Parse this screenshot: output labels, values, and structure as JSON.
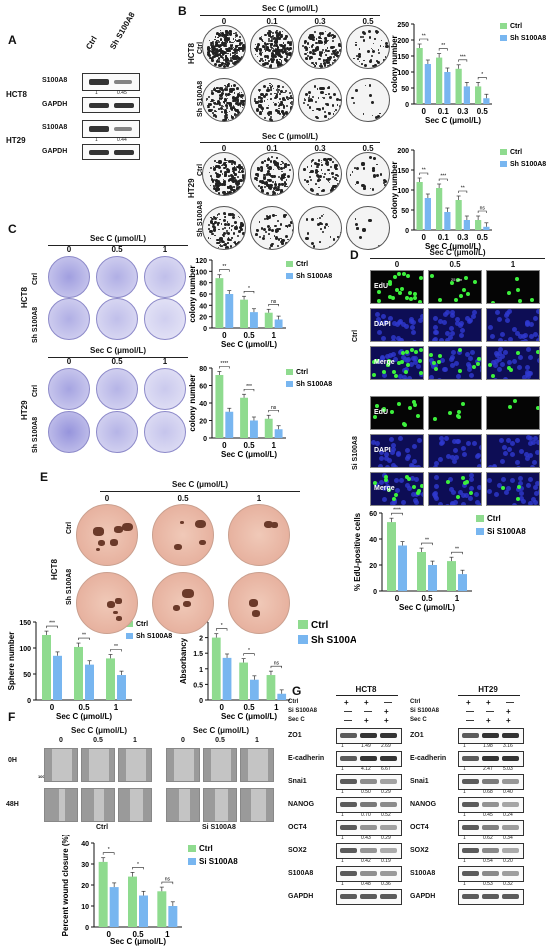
{
  "panels": {
    "A": {
      "label": "A",
      "lanes": [
        "Ctrl",
        "Sh S100A8"
      ],
      "groups": [
        {
          "cell": "HCT8",
          "rows": [
            {
              "name": "S100A8",
              "values": [
                "1",
                "0.45"
              ]
            },
            {
              "name": "GAPDH"
            }
          ]
        },
        {
          "cell": "HT29",
          "rows": [
            {
              "name": "S100A8",
              "values": [
                "1",
                "0.44"
              ]
            },
            {
              "name": "GAPDH"
            }
          ]
        }
      ]
    },
    "B": {
      "label": "B",
      "header": "Sec C (μmol/L)",
      "concentrations": [
        "0",
        "0.1",
        "0.3",
        "0.5"
      ],
      "cells": [
        "HCT8",
        "HT29"
      ],
      "rows": [
        "Ctrl",
        "Sh S100A8"
      ]
    },
    "C": {
      "label": "C",
      "header": "Sec C (μmol/L)",
      "concentrations": [
        "0",
        "0.5",
        "1"
      ],
      "cells": [
        "HCT8",
        "HT29"
      ],
      "rows": [
        "Ctrl",
        "Sh S100A8"
      ]
    },
    "D": {
      "label": "D",
      "header": "Sec C (μmol/L)",
      "concentrations": [
        "0",
        "0.5",
        "1"
      ],
      "groups": [
        "Ctrl",
        "Si S100A8"
      ],
      "stains": [
        "EdU",
        "DAPI",
        "Merge"
      ],
      "scale": "25 μm"
    },
    "E": {
      "label": "E",
      "header": "Sec C (μmol/L)",
      "concentrations": [
        "0",
        "0.5",
        "1"
      ],
      "cell": "HCT8",
      "rows": [
        "Ctrl",
        "Sh S100A8"
      ],
      "scale": "100 μm"
    },
    "F": {
      "label": "F",
      "header": "Sec C (μmol/L)",
      "concentrations": [
        "0",
        "0.5",
        "1"
      ],
      "times": [
        "0H",
        "48H"
      ],
      "groups": [
        "Ctrl",
        "Si S100A8"
      ],
      "scale": "100 μm"
    },
    "G": {
      "label": "G",
      "cells": [
        "HCT8",
        "HT29"
      ],
      "cond_rows": [
        {
          "name": "Ctrl",
          "marks": [
            "+",
            "+",
            "—"
          ]
        },
        {
          "name": "Si S100A8",
          "marks": [
            "—",
            "—",
            "+"
          ]
        },
        {
          "name": "Sec C",
          "marks": [
            "—",
            "+",
            "+"
          ]
        }
      ],
      "blots": [
        {
          "name": "ZO1",
          "HCT8": [
            "1",
            "1.49",
            "2.69"
          ],
          "HT29": [
            "1",
            "1.98",
            "3.16"
          ]
        },
        {
          "name": "E-cadherin",
          "HCT8": [
            "1",
            "4.12",
            "6.67"
          ],
          "HT29": [
            "1",
            "2.47",
            "5.03"
          ]
        },
        {
          "name": "Snai1",
          "HCT8": [
            "1",
            "0.50",
            "0.29"
          ],
          "HT29": [
            "1",
            "0.68",
            "0.40"
          ]
        },
        {
          "name": "NANOG",
          "HCT8": [
            "1",
            "0.70",
            "0.52"
          ],
          "HT29": [
            "1",
            "0.45",
            "0.24"
          ]
        },
        {
          "name": "OCT4",
          "HCT8": [
            "1",
            "0.43",
            "0.29"
          ],
          "HT29": [
            "1",
            "0.62",
            "0.34"
          ]
        },
        {
          "name": "SOX2",
          "HCT8": [
            "1",
            "0.42",
            "0.19"
          ],
          "HT29": [
            "1",
            "0.54",
            "0.20"
          ]
        },
        {
          "name": "S100A8",
          "HCT8": [
            "1",
            "0.48",
            "0.36"
          ],
          "HT29": [
            "1",
            "0.53",
            "0.32"
          ]
        },
        {
          "name": "GAPDH"
        }
      ]
    }
  },
  "colors": {
    "ctrl": "#8fdb8f",
    "treated": "#78b6f0",
    "dish_purple": "#b7b5e6",
    "sphere_dish": "#e8b9a8",
    "fluor_bg": "#0a0a3a"
  },
  "chart_data": [
    {
      "id": "B-HCT8",
      "type": "bar",
      "categories": [
        "0",
        "0.1",
        "0.3",
        "0.5"
      ],
      "xlabel": "Sec C (μmol/L)",
      "ylabel": "colony number",
      "ylim": [
        0,
        250
      ],
      "yticks": [
        "0",
        "50",
        "100",
        "150",
        "200",
        "250"
      ],
      "series": [
        {
          "name": "Ctrl",
          "values": [
            175,
            145,
            110,
            55
          ]
        },
        {
          "name": "Sh S100A8",
          "values": [
            125,
            100,
            55,
            18
          ]
        }
      ],
      "significance": [
        "**",
        "**",
        "***",
        "*"
      ]
    },
    {
      "id": "B-HT29",
      "type": "bar",
      "categories": [
        "0",
        "0.1",
        "0.3",
        "0.5"
      ],
      "xlabel": "Sec C (μmol/L)",
      "ylabel": "colony number",
      "ylim": [
        0,
        200
      ],
      "yticks": [
        "0",
        "50",
        "100",
        "150",
        "200"
      ],
      "series": [
        {
          "name": "Ctrl",
          "values": [
            120,
            105,
            75,
            25
          ]
        },
        {
          "name": "Sh S100A8",
          "values": [
            80,
            45,
            25,
            8
          ]
        }
      ],
      "significance": [
        "**",
        "***",
        "**",
        "ns"
      ]
    },
    {
      "id": "C-HCT8",
      "type": "bar",
      "categories": [
        "0",
        "0.5",
        "1"
      ],
      "xlabel": "Sec C (μmol/L)",
      "ylabel": "colony number",
      "ylim": [
        0,
        120
      ],
      "yticks": [
        "0",
        "20",
        "40",
        "60",
        "80",
        "100",
        "120"
      ],
      "series": [
        {
          "name": "Ctrl",
          "values": [
            88,
            50,
            27
          ]
        },
        {
          "name": "Sh S100A8",
          "values": [
            60,
            28,
            15
          ]
        }
      ],
      "significance": [
        "**",
        "*",
        "ns"
      ]
    },
    {
      "id": "C-HT29",
      "type": "bar",
      "categories": [
        "0",
        "0.5",
        "1"
      ],
      "xlabel": "Sec C (μmol/L)",
      "ylabel": "colony number",
      "ylim": [
        0,
        80
      ],
      "yticks": [
        "0",
        "20",
        "40",
        "60",
        "80"
      ],
      "series": [
        {
          "name": "Ctrl",
          "values": [
            72,
            46,
            22
          ]
        },
        {
          "name": "Sh S100A8",
          "values": [
            30,
            20,
            10
          ]
        }
      ],
      "significance": [
        "****",
        "***",
        "ns"
      ]
    },
    {
      "id": "D-edu",
      "type": "bar",
      "categories": [
        "0",
        "0.5",
        "1"
      ],
      "xlabel": "Sec C (μmol/L)",
      "ylabel": "% EdU-positive cells",
      "ylim": [
        0,
        60
      ],
      "yticks": [
        "0",
        "20",
        "40",
        "60"
      ],
      "series": [
        {
          "name": "Ctrl",
          "values": [
            53,
            30,
            23
          ]
        },
        {
          "name": "Si S100A8",
          "values": [
            35,
            20,
            13
          ]
        }
      ],
      "significance": [
        "****",
        "**",
        "**"
      ]
    },
    {
      "id": "E-sphere",
      "type": "bar",
      "categories": [
        "0",
        "0.5",
        "1"
      ],
      "xlabel": "Sec C (μmol/L)",
      "ylabel": "Sphere number",
      "ylim": [
        0,
        150
      ],
      "yticks": [
        "0",
        "50",
        "100",
        "150"
      ],
      "series": [
        {
          "name": "Ctrl",
          "values": [
            125,
            102,
            80
          ]
        },
        {
          "name": "Sh S100A8",
          "values": [
            85,
            68,
            48
          ]
        }
      ],
      "significance": [
        "***",
        "**",
        "**"
      ]
    },
    {
      "id": "E-abs",
      "type": "bar",
      "categories": [
        "0",
        "0.5",
        "1"
      ],
      "xlabel": "Sec C (μmol/L)",
      "ylabel": "Absorbancy",
      "ylim": [
        0,
        2.5
      ],
      "yticks": [
        "0",
        "0.5",
        "1",
        "1.5",
        "2",
        "2.5"
      ],
      "series": [
        {
          "name": "Ctrl",
          "values": [
            2.0,
            1.2,
            0.8
          ]
        },
        {
          "name": "Sh S100A8",
          "values": [
            1.35,
            0.65,
            0.2
          ]
        }
      ],
      "significance": [
        "*",
        "*",
        "ns"
      ]
    },
    {
      "id": "F-wound",
      "type": "bar",
      "categories": [
        "0",
        "0.5",
        "1"
      ],
      "xlabel": "Sec C (μmol/L)",
      "ylabel": "Percent wound closure (%)",
      "ylim": [
        0,
        40
      ],
      "yticks": [
        "0",
        "10",
        "20",
        "30",
        "40"
      ],
      "series": [
        {
          "name": "Ctrl",
          "values": [
            31,
            24,
            17
          ]
        },
        {
          "name": "Si S100A8",
          "values": [
            19,
            15,
            10
          ]
        }
      ],
      "significance": [
        "*",
        "*",
        "ns"
      ]
    }
  ]
}
